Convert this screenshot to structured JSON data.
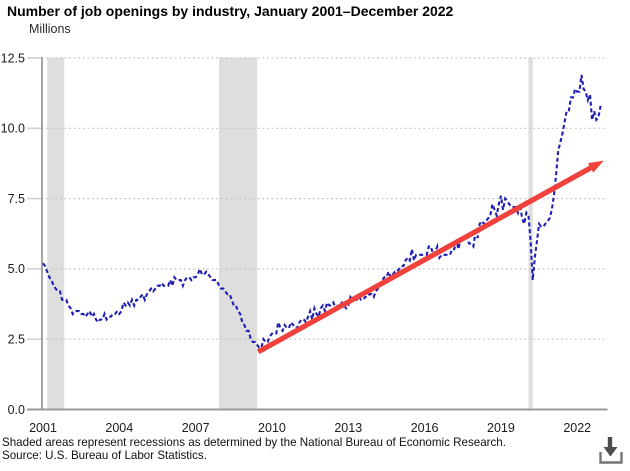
{
  "header": {
    "title": "Number of job openings by industry, January 2001–December 2022",
    "units_label": "Millions"
  },
  "footer": {
    "note": "Shaded areas represent recessions as determined by the National Bureau of Economic Research.",
    "source": "Source: U.S. Bureau of Labor Statistics.",
    "download_icon": "download-icon"
  },
  "chart_data": {
    "type": "line",
    "title": "Number of job openings by industry, January 2001–December 2022",
    "xlabel": "",
    "ylabel": "Millions",
    "ylim": [
      0,
      12.5
    ],
    "x_range": [
      "2001-01",
      "2022-12"
    ],
    "grid": "horizontal-dotted",
    "legend": "none",
    "y_axis": {
      "ticks": [
        {
          "value": 0,
          "label": "0.0"
        },
        {
          "value": 2.5,
          "label": "2.5"
        },
        {
          "value": 5,
          "label": "5.0"
        },
        {
          "value": 7.5,
          "label": "7.5"
        },
        {
          "value": 10,
          "label": "10.0"
        },
        {
          "value": 12.5,
          "label": "12.5"
        }
      ]
    },
    "x_axis": {
      "ticks": [
        {
          "year": 2001,
          "label": "2001"
        },
        {
          "year": 2004,
          "label": "2004"
        },
        {
          "year": 2007,
          "label": "2007"
        },
        {
          "year": 2010,
          "label": "2010"
        },
        {
          "year": 2013,
          "label": "2013"
        },
        {
          "year": 2016,
          "label": "2016"
        },
        {
          "year": 2019,
          "label": "2019"
        },
        {
          "year": 2022,
          "label": "2022"
        }
      ]
    },
    "series": [
      {
        "name": "Job openings (millions), monthly",
        "style": "dashed",
        "color": "#1f1fb4",
        "start": "2001-01",
        "frequency": "monthly",
        "monthly_values_by_year": [
          {
            "year": 2001,
            "values": [
              5.2,
              5.1,
              4.9,
              4.7,
              4.6,
              4.4,
              4.3,
              4.2,
              4.2,
              3.9,
              3.9,
              3.9
            ]
          },
          {
            "year": 2002,
            "values": [
              3.7,
              3.6,
              3.4,
              3.5,
              3.5,
              3.5,
              3.4,
              3.4,
              3.3,
              3.4,
              3.5,
              3.3
            ]
          },
          {
            "year": 2003,
            "values": [
              3.4,
              3.2,
              3.1,
              3.2,
              3.2,
              3.4,
              3.2,
              3.3,
              3.3,
              3.4,
              3.4,
              3.5
            ]
          },
          {
            "year": 2004,
            "values": [
              3.4,
              3.5,
              3.8,
              3.7,
              3.8,
              3.7,
              3.9,
              3.7,
              3.9,
              3.9,
              4.0,
              4.1
            ]
          },
          {
            "year": 2005,
            "values": [
              3.9,
              4.1,
              4.2,
              4.3,
              4.2,
              4.3,
              4.4,
              4.4,
              4.5,
              4.4,
              4.4,
              4.4
            ]
          },
          {
            "year": 2006,
            "values": [
              4.6,
              4.4,
              4.7,
              4.6,
              4.6,
              4.6,
              4.4,
              4.6,
              4.7,
              4.7,
              4.6,
              4.7
            ]
          },
          {
            "year": 2007,
            "values": [
              4.7,
              4.8,
              5.0,
              4.8,
              4.8,
              4.9,
              4.8,
              4.7,
              4.6,
              4.6,
              4.6,
              4.4
            ]
          },
          {
            "year": 2008,
            "values": [
              4.3,
              4.3,
              4.2,
              4.1,
              4.1,
              3.9,
              3.7,
              3.7,
              3.5,
              3.4,
              3.1,
              3.0
            ]
          },
          {
            "year": 2009,
            "values": [
              2.8,
              2.8,
              2.5,
              2.4,
              2.4,
              2.3,
              2.2,
              2.2,
              2.5,
              2.4,
              2.4,
              2.6
            ]
          },
          {
            "year": 2010,
            "values": [
              2.7,
              2.7,
              2.7,
              3.1,
              2.9,
              2.8,
              3.0,
              2.9,
              2.9,
              3.1,
              3.0,
              3.0
            ]
          },
          {
            "year": 2011,
            "values": [
              2.9,
              3.1,
              3.2,
              3.2,
              3.1,
              3.3,
              3.5,
              3.2,
              3.6,
              3.4,
              3.3,
              3.6
            ]
          },
          {
            "year": 2012,
            "values": [
              3.7,
              3.5,
              3.8,
              3.7,
              3.7,
              3.8,
              3.6,
              3.7,
              3.7,
              3.8,
              3.7,
              3.6
            ]
          },
          {
            "year": 2013,
            "values": [
              3.7,
              4.0,
              3.9,
              3.9,
              3.9,
              4.0,
              3.9,
              3.9,
              4.0,
              4.0,
              4.1,
              4.1
            ]
          },
          {
            "year": 2014,
            "values": [
              4.0,
              4.2,
              4.3,
              4.5,
              4.6,
              4.7,
              4.7,
              4.9,
              4.7,
              4.8,
              4.9,
              4.9
            ]
          },
          {
            "year": 2015,
            "values": [
              5.0,
              5.1,
              5.1,
              5.3,
              5.4,
              5.3,
              5.7,
              5.3,
              5.5,
              5.5,
              5.5,
              5.5
            ]
          },
          {
            "year": 2016,
            "values": [
              5.5,
              5.5,
              5.8,
              5.8,
              5.5,
              5.6,
              5.8,
              5.4,
              5.5,
              5.5,
              5.5,
              5.5
            ]
          },
          {
            "year": 2017,
            "values": [
              5.5,
              5.7,
              5.7,
              6.0,
              5.7,
              6.1,
              6.1,
              6.1,
              6.1,
              5.9,
              5.9,
              5.8
            ]
          },
          {
            "year": 2018,
            "values": [
              6.3,
              6.1,
              6.6,
              6.7,
              6.6,
              6.7,
              6.8,
              6.9,
              7.3,
              7.1,
              6.9,
              7.3
            ]
          },
          {
            "year": 2019,
            "values": [
              7.6,
              7.1,
              7.5,
              7.4,
              7.3,
              7.2,
              7.2,
              7.2,
              7.0,
              7.3,
              6.8,
              6.6
            ]
          },
          {
            "year": 2020,
            "values": [
              7.0,
              6.9,
              6.0,
              4.6,
              5.4,
              6.0,
              6.6,
              6.5,
              6.5,
              6.6,
              6.7,
              6.8
            ]
          },
          {
            "year": 2021,
            "values": [
              7.1,
              7.6,
              8.3,
              9.2,
              9.5,
              9.8,
              10.2,
              10.6,
              10.6,
              11.1,
              11.1,
              11.4
            ]
          },
          {
            "year": 2022,
            "values": [
              11.3,
              11.3,
              11.9,
              11.4,
              11.3,
              11.0,
              11.2,
              10.3,
              10.6,
              10.3,
              10.4,
              10.8
            ]
          }
        ]
      }
    ],
    "recessions": [
      {
        "start": "2001-03",
        "end": "2001-11"
      },
      {
        "start": "2007-12",
        "end": "2009-06"
      },
      {
        "start": "2020-02",
        "end": "2020-04"
      }
    ],
    "trend_arrow": {
      "description": "upward trend annotation from mid-2009 trough toward late 2022",
      "color": "#f0413c",
      "start": {
        "month_index": 101.5,
        "value": 2.05
      },
      "end": {
        "month_index": 264.5,
        "value": 8.85
      }
    },
    "colors": {
      "line": "#1f1fb4",
      "trend_arrow": "#f0413c",
      "recession_shading": "#dedede",
      "gridline": "#bfbfbf",
      "axis": "#9a9a9a",
      "tick_mark": "#ccd3da"
    }
  }
}
